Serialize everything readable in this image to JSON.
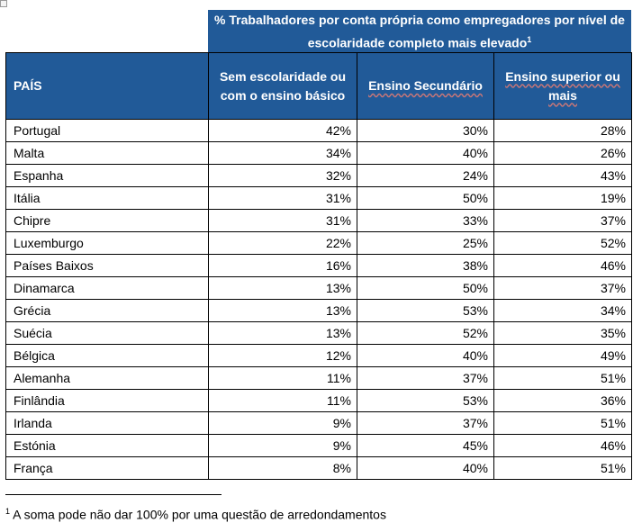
{
  "title": "% Trabalhadores por conta própria como empregadores por nível de escolaridade completo mais elevado",
  "title_footnote_mark": "1",
  "columns": [
    "PAÍS",
    "Sem escolaridade ou com o ensino básico",
    "Ensino Secundário",
    "Ensino superior ou mais"
  ],
  "rows": [
    [
      "Portugal",
      "42%",
      "30%",
      "28%"
    ],
    [
      "Malta",
      "34%",
      "40%",
      "26%"
    ],
    [
      "Espanha",
      "32%",
      "24%",
      "43%"
    ],
    [
      "Itália",
      "31%",
      "50%",
      "19%"
    ],
    [
      "Chipre",
      "31%",
      "33%",
      "37%"
    ],
    [
      "Luxemburgo",
      "22%",
      "25%",
      "52%"
    ],
    [
      "Países Baixos",
      "16%",
      "38%",
      "46%"
    ],
    [
      "Dinamarca",
      "13%",
      "50%",
      "37%"
    ],
    [
      "Grécia",
      "13%",
      "53%",
      "34%"
    ],
    [
      "Suécia",
      "13%",
      "52%",
      "35%"
    ],
    [
      "Bélgica",
      "12%",
      "40%",
      "49%"
    ],
    [
      "Alemanha",
      "11%",
      "37%",
      "51%"
    ],
    [
      "Finlândia",
      "11%",
      "53%",
      "36%"
    ],
    [
      "Irlanda",
      "9%",
      "37%",
      "51%"
    ],
    [
      "Estónia",
      "9%",
      "45%",
      "46%"
    ],
    [
      "França",
      "8%",
      "40%",
      "51%"
    ]
  ],
  "footnote": {
    "mark": "1",
    "text": " A soma pode não dar 100% por uma questão de arredondamentos"
  },
  "colors": {
    "header": "#215A98"
  }
}
